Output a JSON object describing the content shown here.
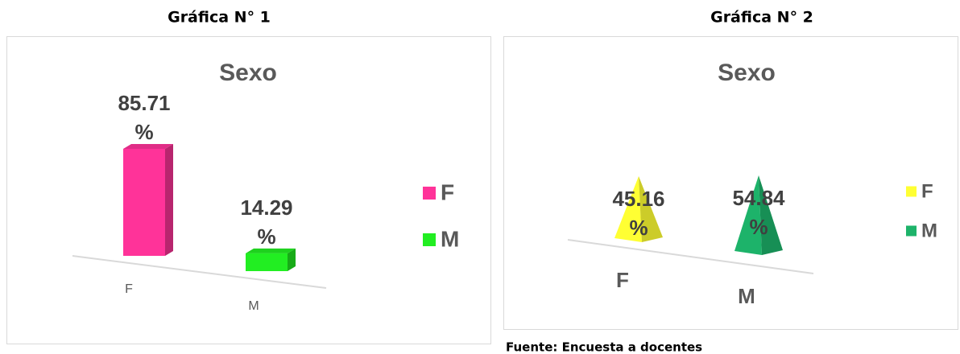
{
  "chart_data": [
    {
      "type": "bar",
      "heading": "Gráfica N° 1",
      "title": "Sexo",
      "categories": [
        "F",
        "M"
      ],
      "values": [
        85.71,
        14.29
      ],
      "value_labels": [
        "85.71 %",
        "14.29 %"
      ],
      "colors": [
        "#ff3399",
        "#22ee22"
      ]
    },
    {
      "type": "pyramid",
      "heading": "Gráfica N° 2",
      "title": "Sexo",
      "categories": [
        "F",
        "M"
      ],
      "values": [
        45.16,
        54.84
      ],
      "value_labels": [
        "45.16 %",
        "54.84 %"
      ],
      "colors": [
        "#ffff33",
        "#1db36a"
      ]
    }
  ],
  "source": "Fuente: Encuesta a docentes"
}
